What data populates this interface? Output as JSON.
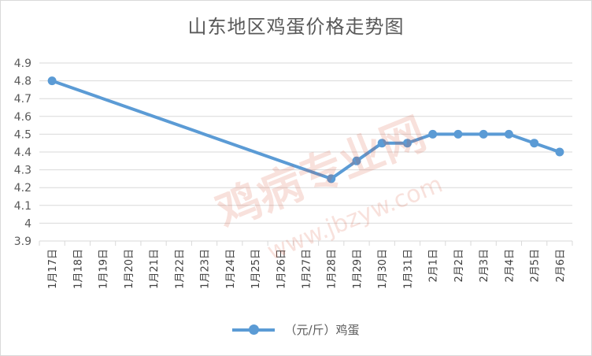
{
  "chart_data": {
    "type": "line",
    "title": "山东地区鸡蛋价格走势图",
    "categories": [
      "1月17日",
      "1月18日",
      "1月19日",
      "1月20日",
      "1月21日",
      "1月22日",
      "1月23日",
      "1月24日",
      "1月25日",
      "1月26日",
      "1月27日",
      "1月28日",
      "1月29日",
      "1月30日",
      "1月31日",
      "2月1日",
      "2月2日",
      "2月3日",
      "2月4日",
      "2月5日",
      "2月6日"
    ],
    "series": [
      {
        "name": "（元/斤）鸡蛋",
        "color": "#5b9bd5",
        "values": [
          4.8,
          null,
          null,
          null,
          null,
          null,
          null,
          null,
          null,
          null,
          null,
          4.25,
          4.35,
          4.45,
          4.45,
          4.5,
          4.5,
          4.5,
          4.5,
          4.45,
          4.4
        ]
      }
    ],
    "yticks": [
      "3.9",
      "4",
      "4.1",
      "4.2",
      "4.3",
      "4.4",
      "4.5",
      "4.6",
      "4.7",
      "4.8",
      "4.9"
    ],
    "ylim": [
      3.9,
      4.9
    ],
    "grid": true,
    "legend_position": "bottom",
    "span_gaps": true
  },
  "watermark": {
    "text": "鸡病专业网",
    "url": "www.jbzyw.com"
  }
}
